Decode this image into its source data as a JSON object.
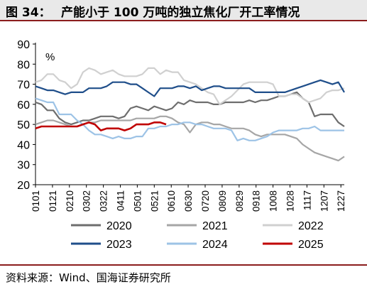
{
  "figure": {
    "number": "图 34：",
    "title": "产能小于 100 万吨的独立焦化厂开工率情况",
    "source": "资料来源：Wind、国海证券研究所"
  },
  "chart_data": {
    "type": "line",
    "unit_label": "%",
    "ylim": [
      20,
      90
    ],
    "yticks": [
      20,
      30,
      40,
      50,
      60,
      70,
      80,
      90
    ],
    "xlim": [
      0,
      52
    ],
    "x_tick_labels": [
      "0101",
      "0121",
      "0210",
      "0302",
      "0322",
      "0411",
      "0501",
      "0521",
      "0610",
      "0630",
      "0720",
      "0809",
      "0829",
      "0918",
      "1008",
      "1028",
      "1117",
      "1207",
      "1227"
    ],
    "x_tick_positions": [
      0,
      2.86,
      5.71,
      8.57,
      11.43,
      14.29,
      17.14,
      20.0,
      22.86,
      25.71,
      28.57,
      31.43,
      34.29,
      37.14,
      40.0,
      42.86,
      45.71,
      48.57,
      51.43
    ],
    "grid": false,
    "legend_position": "bottom",
    "series": [
      {
        "name": "2020",
        "color": "#6e6e6e",
        "x": [
          0,
          1,
          2,
          3,
          4,
          5,
          6,
          7,
          8,
          9,
          10,
          11,
          12,
          13,
          14,
          15,
          16,
          17,
          18,
          19,
          20,
          21,
          22,
          23,
          24,
          25,
          26,
          27,
          28,
          29,
          30,
          31,
          32,
          33,
          34,
          35,
          36,
          37,
          38,
          39,
          40,
          41,
          42,
          43,
          44,
          45,
          46,
          47,
          48,
          49,
          50,
          51,
          52
        ],
        "values": [
          61,
          60,
          57,
          57,
          53,
          51,
          50,
          51,
          52,
          52,
          53,
          54,
          54,
          54,
          53,
          54,
          58,
          59,
          58,
          57,
          59,
          58,
          57,
          58,
          61,
          60,
          62,
          61,
          61,
          61,
          60,
          60,
          61,
          61,
          61,
          61,
          62,
          61,
          62,
          62,
          63,
          64,
          64,
          65,
          66,
          63,
          61,
          54,
          55,
          55,
          55,
          51,
          49
        ]
      },
      {
        "name": "2021",
        "color": "#a6a6a6",
        "x": [
          0,
          1,
          2,
          3,
          4,
          5,
          6,
          7,
          8,
          9,
          10,
          11,
          12,
          13,
          14,
          15,
          16,
          17,
          18,
          19,
          20,
          21,
          22,
          23,
          24,
          25,
          26,
          27,
          28,
          29,
          30,
          31,
          32,
          33,
          34,
          35,
          36,
          37,
          38,
          39,
          40,
          41,
          42,
          43,
          44,
          45,
          46,
          47,
          48,
          49,
          50,
          51,
          52
        ],
        "values": [
          50,
          51,
          52,
          52,
          51,
          50,
          49,
          49,
          50,
          51,
          51,
          52,
          52,
          52,
          52,
          52,
          52,
          53,
          53,
          53,
          53,
          54,
          54,
          53,
          51,
          50,
          46,
          50,
          51,
          51,
          50,
          50,
          49,
          48,
          48,
          48,
          47,
          45,
          44,
          45,
          45,
          45,
          45,
          44,
          43,
          40,
          38,
          36,
          35,
          34,
          33,
          32,
          34
        ]
      },
      {
        "name": "2022",
        "color": "#d0d0d0",
        "x": [
          0,
          1,
          2,
          3,
          4,
          5,
          6,
          7,
          8,
          9,
          10,
          11,
          12,
          13,
          14,
          15,
          16,
          17,
          18,
          19,
          20,
          21,
          22,
          23,
          24,
          25,
          26,
          27,
          28,
          29,
          30,
          31,
          32,
          33,
          34,
          35,
          36,
          37,
          38,
          39,
          40,
          41,
          42,
          43,
          44,
          45,
          46,
          47,
          48,
          49,
          50,
          51,
          52
        ],
        "values": [
          71,
          72,
          75,
          75,
          72,
          71,
          68,
          70,
          76,
          78,
          77,
          75,
          76,
          77,
          75,
          74,
          74,
          74,
          75,
          78,
          78,
          75,
          77,
          76,
          76,
          72,
          71,
          70,
          68,
          66,
          65,
          60,
          62,
          64,
          67,
          70,
          71,
          71,
          71,
          71,
          70,
          64,
          64,
          65,
          65,
          63,
          61,
          62,
          63,
          66,
          67,
          67,
          68
        ]
      },
      {
        "name": "2023",
        "color": "#1f4e8a",
        "x": [
          0,
          1,
          2,
          3,
          4,
          5,
          6,
          7,
          8,
          9,
          10,
          11,
          12,
          13,
          14,
          15,
          16,
          17,
          18,
          19,
          20,
          21,
          22,
          23,
          24,
          25,
          26,
          27,
          28,
          29,
          30,
          31,
          32,
          33,
          34,
          35,
          36,
          37,
          38,
          39,
          40,
          41,
          42,
          43,
          44,
          45,
          46,
          47,
          48,
          49,
          50,
          51,
          52
        ],
        "values": [
          69,
          68,
          67,
          67,
          66,
          65,
          66,
          66,
          66,
          68,
          68,
          68,
          69,
          71,
          71,
          71,
          70,
          70,
          68,
          66,
          64,
          68,
          68,
          68,
          69,
          69,
          68,
          69,
          67,
          68,
          69,
          69,
          68,
          68,
          68,
          68,
          68,
          66,
          66,
          66,
          66,
          66,
          66,
          67,
          68,
          69,
          70,
          71,
          72,
          71,
          70,
          71,
          66
        ]
      },
      {
        "name": "2024",
        "color": "#9dc3e6",
        "x": [
          0,
          1,
          2,
          3,
          4,
          5,
          6,
          7,
          8,
          9,
          10,
          11,
          12,
          13,
          14,
          15,
          16,
          17,
          18,
          19,
          20,
          21,
          22,
          23,
          24,
          25,
          26,
          27,
          28,
          29,
          30,
          31,
          32,
          33,
          34,
          35,
          36,
          37,
          38,
          39,
          40,
          41,
          42,
          43,
          44,
          45,
          46,
          47,
          48,
          49,
          50,
          51,
          52
        ],
        "values": [
          63,
          62,
          61,
          61,
          55,
          55,
          55,
          52,
          50,
          47,
          45,
          45,
          44,
          43,
          44,
          43,
          43,
          44,
          44,
          48,
          48,
          49,
          49,
          50,
          50,
          51,
          51,
          50,
          50,
          49,
          48,
          48,
          48,
          47,
          42,
          43,
          42,
          42,
          43,
          44,
          46,
          47,
          47,
          47,
          47,
          48,
          48,
          49,
          47,
          47,
          47,
          47,
          47
        ]
      },
      {
        "name": "2025",
        "color": "#c00000",
        "x": [
          0,
          1,
          2,
          3,
          4,
          5,
          6,
          7,
          8,
          9,
          10,
          11,
          12,
          13,
          14,
          15,
          16,
          17,
          18,
          19,
          20,
          21,
          22
        ],
        "values": [
          48,
          49,
          49,
          49,
          49,
          49,
          49,
          49,
          50,
          51,
          50,
          47,
          48,
          48,
          48,
          47,
          48,
          50,
          50,
          50,
          51,
          51,
          50
        ]
      }
    ]
  }
}
